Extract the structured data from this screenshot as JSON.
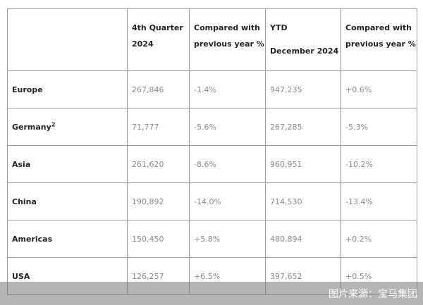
{
  "table": {
    "headers": [
      "",
      "4th Quarter 2024",
      "Compared with previous year %",
      [
        "YTD",
        "December 2024"
      ],
      "Compared with previous year %"
    ],
    "rows": [
      {
        "region": "Europe",
        "sup": "",
        "q4": "267,846",
        "q4_change": "-1.4%",
        "ytd": "947,235",
        "ytd_change": "+0.6%"
      },
      {
        "region": "Germany",
        "sup": "2",
        "q4": "71,777",
        "q4_change": "-5.6%",
        "ytd": "267,285",
        "ytd_change": "-5.3%"
      },
      {
        "region": "Asia",
        "sup": "",
        "q4": "261,620",
        "q4_change": "-8.6%",
        "ytd": "960,951",
        "ytd_change": "-10.2%"
      },
      {
        "region": "China",
        "sup": "",
        "q4": "190,892",
        "q4_change": "-14.0%",
        "ytd": "714,530",
        "ytd_change": "-13.4%"
      },
      {
        "region": "Americas",
        "sup": "",
        "q4": "150,450",
        "q4_change": "+5.8%",
        "ytd": "480,894",
        "ytd_change": "+0.2%"
      },
      {
        "region": "USA",
        "sup": "",
        "q4": "126,257",
        "q4_change": "+6.5%",
        "ytd": "397,652",
        "ytd_change": "+0.5%"
      }
    ]
  },
  "watermark": "图片来源：宝马集团"
}
